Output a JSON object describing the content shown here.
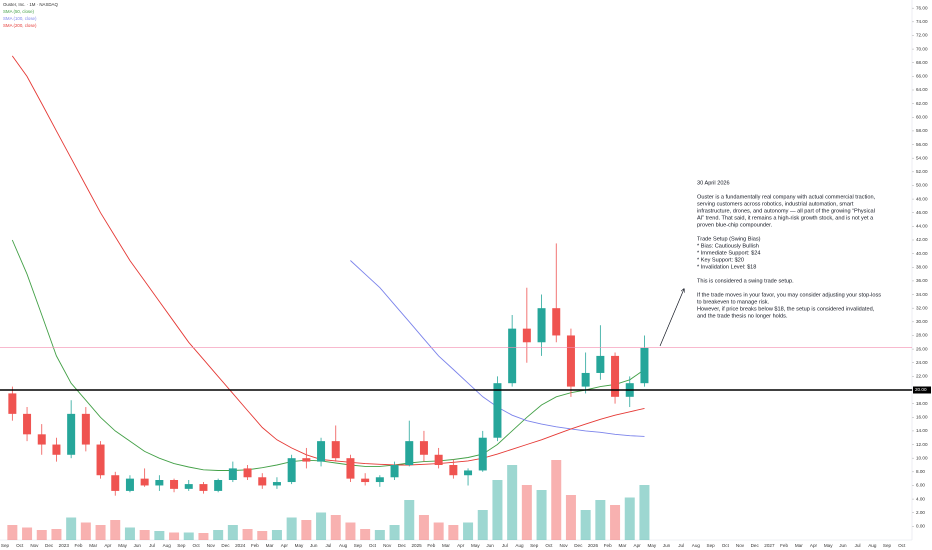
{
  "chart_data": {
    "type": "candlestick",
    "title": "Ouster, Inc. · 1M · NASDAQ",
    "categories": [
      "Sep",
      "Oct",
      "Nov",
      "Dec",
      "2023",
      "Feb",
      "Mar",
      "Apr",
      "May",
      "Jun",
      "Jul",
      "Aug",
      "Sep",
      "Oct",
      "Nov",
      "Dec",
      "2024",
      "Feb",
      "Mar",
      "Apr",
      "May",
      "Jun",
      "Jul",
      "Aug",
      "Sep",
      "Oct",
      "Nov",
      "Dec",
      "2025",
      "Feb",
      "Mar",
      "Apr",
      "May",
      "Jun",
      "Jul",
      "Aug",
      "Sep",
      "Oct",
      "Nov",
      "Dec",
      "2026",
      "Feb",
      "Mar",
      "Apr",
      "May",
      "Jun",
      "Jul",
      "Aug",
      "Sep",
      "Oct",
      "Nov",
      "Dec",
      "2027",
      "Feb",
      "Mar",
      "Apr",
      "May",
      "Jun",
      "Jul",
      "Aug",
      "Sep",
      "Oct"
    ],
    "open": [
      19.5,
      16.5,
      13.5,
      12,
      10.5,
      16.5,
      12,
      7.5,
      5.2,
      7,
      6,
      6.8,
      5.5,
      6.2,
      5.2,
      6.8,
      8.5,
      7.2,
      6,
      6.5,
      10,
      9.5,
      12.5,
      10,
      7,
      6.5,
      7.2,
      9,
      12.5,
      10.5,
      9,
      7.5,
      8.2,
      13,
      21,
      29,
      27,
      32,
      28,
      20.5,
      22.5,
      25,
      19,
      21,
      null,
      null,
      null,
      null,
      null,
      null,
      null,
      null,
      null,
      null,
      null,
      null,
      null,
      null,
      null,
      null,
      null,
      null
    ],
    "high": [
      20.5,
      17.5,
      15,
      13,
      18.5,
      17.5,
      12.5,
      8,
      7.5,
      8.5,
      7.5,
      7,
      6.8,
      6.5,
      7,
      9.5,
      9,
      7.8,
      7.2,
      10.5,
      11.5,
      13,
      14.8,
      10.5,
      7.8,
      7.5,
      9.5,
      15.5,
      14,
      11.5,
      9.8,
      8.5,
      14,
      22,
      31,
      35,
      34,
      41.5,
      29,
      25.5,
      29.5,
      25.5,
      22,
      28,
      null,
      null,
      null,
      null,
      null,
      null,
      null,
      null,
      null,
      null,
      null,
      null,
      null,
      null,
      null,
      null,
      null,
      null
    ],
    "low": [
      15.5,
      12.5,
      10.5,
      9.5,
      10,
      11,
      7,
      4.5,
      5,
      5.8,
      5.2,
      5,
      5.2,
      4.8,
      5,
      6.5,
      6.8,
      5.5,
      5.5,
      6.2,
      8.5,
      8.8,
      9.5,
      6.5,
      6,
      5.8,
      6.8,
      8.8,
      9.5,
      8.5,
      7,
      6,
      8,
      12.5,
      20.5,
      24,
      25,
      27,
      19,
      19.5,
      21.5,
      18,
      17.5,
      20.5,
      null,
      null,
      null,
      null,
      null,
      null,
      null,
      null,
      null,
      null,
      null,
      null,
      null,
      null,
      null,
      null,
      null,
      null
    ],
    "close": [
      16.5,
      13.5,
      12,
      10.5,
      16.5,
      12,
      7.5,
      5.2,
      7,
      6,
      6.8,
      5.5,
      6.2,
      5.2,
      6.8,
      8.5,
      7.2,
      6,
      6.5,
      10,
      9.5,
      12.5,
      10,
      7,
      6.5,
      7.2,
      9,
      12.5,
      10.5,
      9,
      7.5,
      8.2,
      13,
      21,
      29,
      27,
      32,
      28,
      20.5,
      22.5,
      25,
      19,
      21,
      26.2,
      null,
      null,
      null,
      null,
      null,
      null,
      null,
      null,
      null,
      null,
      null,
      null,
      null,
      null,
      null,
      null,
      null,
      null
    ],
    "volume": [
      30,
      25,
      20,
      22,
      45,
      35,
      30,
      40,
      25,
      20,
      18,
      15,
      15,
      14,
      20,
      30,
      22,
      18,
      20,
      45,
      40,
      55,
      50,
      35,
      22,
      20,
      30,
      80,
      50,
      35,
      30,
      35,
      60,
      120,
      150,
      110,
      100,
      160,
      90,
      60,
      80,
      70,
      85,
      110,
      null,
      null,
      null,
      null,
      null,
      null,
      null,
      null,
      null,
      null,
      null,
      null,
      null,
      null,
      null,
      null,
      null,
      null
    ],
    "up_color": "#26a69a",
    "down_color": "#ef5350",
    "series": [
      {
        "name": "SMA (50, close)",
        "color": "#43a047",
        "values": [
          42,
          37,
          31,
          25,
          21,
          18.5,
          16,
          14,
          12.5,
          11,
          10,
          9.2,
          8.7,
          8.3,
          8.2,
          8.2,
          8.3,
          8.6,
          9,
          9.5,
          9.7,
          9.6,
          9.3,
          9,
          8.8,
          8.8,
          9,
          9.3,
          9.5,
          9.6,
          9.8,
          10.1,
          10.6,
          12,
          14,
          16,
          17.8,
          19,
          19.6,
          20,
          20.5,
          20.8,
          21.5,
          23,
          null,
          null,
          null,
          null,
          null,
          null,
          null,
          null,
          null,
          null,
          null,
          null,
          null,
          null,
          null,
          null,
          null,
          null
        ]
      },
      {
        "name": "SMA (100, close)",
        "color": "#7b83eb",
        "values": [
          null,
          null,
          null,
          null,
          null,
          null,
          null,
          null,
          null,
          null,
          null,
          null,
          null,
          null,
          null,
          null,
          null,
          null,
          null,
          null,
          null,
          null,
          null,
          39,
          37,
          35,
          32.5,
          30,
          27.5,
          25,
          23,
          21,
          19,
          17.5,
          16.3,
          15.5,
          15,
          14.6,
          14.3,
          14,
          13.8,
          13.5,
          13.3,
          13.2,
          null,
          null,
          null,
          null,
          null,
          null,
          null,
          null,
          null,
          null,
          null,
          null,
          null,
          null,
          null,
          null,
          null,
          null
        ]
      },
      {
        "name": "SMA (200, close)",
        "color": "#e53935",
        "values": [
          69,
          66,
          62,
          58,
          54,
          50,
          46,
          42.5,
          39,
          36,
          33,
          30,
          27,
          24.5,
          22,
          19.5,
          17,
          14.5,
          12.7,
          11.5,
          10.5,
          9.8,
          9.6,
          9.4,
          9.2,
          9.1,
          9,
          9,
          9.1,
          9.2,
          9.4,
          9.6,
          10,
          10.6,
          11.3,
          12,
          12.7,
          13.5,
          14.3,
          15,
          15.7,
          16.3,
          16.8,
          17.3,
          null,
          null,
          null,
          null,
          null,
          null,
          null,
          null,
          null,
          null,
          null,
          null,
          null,
          null,
          null,
          null,
          null,
          null
        ]
      }
    ],
    "ylim": [
      -2,
      77.2
    ],
    "y2lim": [
      0,
      200
    ],
    "yticks": [
      {
        "value": 0,
        "label": "0.00"
      },
      {
        "value": 2,
        "label": "2.00"
      },
      {
        "value": 4,
        "label": "4.00"
      },
      {
        "value": 6,
        "label": "6.00"
      },
      {
        "value": 8,
        "label": "8.00"
      },
      {
        "value": 10,
        "label": "10.00"
      },
      {
        "value": 12,
        "label": "12.00"
      },
      {
        "value": 14,
        "label": "14.00"
      },
      {
        "value": 16,
        "label": "16.00"
      },
      {
        "value": 18,
        "label": "18.00"
      },
      {
        "value": 20,
        "label": "20.00"
      },
      {
        "value": 22,
        "label": "22.00"
      },
      {
        "value": 24,
        "label": "24.00"
      },
      {
        "value": 26,
        "label": "26.00"
      },
      {
        "value": 28,
        "label": "28.00"
      },
      {
        "value": 30,
        "label": "30.00"
      },
      {
        "value": 32,
        "label": "32.00"
      },
      {
        "value": 34,
        "label": "34.00"
      },
      {
        "value": 36,
        "label": "36.00"
      },
      {
        "value": 38,
        "label": "38.00"
      },
      {
        "value": 40,
        "label": "40.00"
      },
      {
        "value": 42,
        "label": "42.00"
      },
      {
        "value": 44,
        "label": "44.00"
      },
      {
        "value": 46,
        "label": "46.00"
      },
      {
        "value": 48,
        "label": "48.00"
      },
      {
        "value": 50,
        "label": "50.00"
      },
      {
        "value": 52,
        "label": "52.00"
      },
      {
        "value": 54,
        "label": "54.00"
      },
      {
        "value": 56,
        "label": "56.00"
      },
      {
        "value": 58,
        "label": "58.00"
      },
      {
        "value": 60,
        "label": "60.00"
      },
      {
        "value": 62,
        "label": "62.00"
      },
      {
        "value": 64,
        "label": "64.00"
      },
      {
        "value": 66,
        "label": "66.00"
      },
      {
        "value": 68,
        "label": "68.00"
      },
      {
        "value": 70,
        "label": "70.00"
      },
      {
        "value": 72,
        "label": "72.00"
      },
      {
        "value": 74,
        "label": "74.00"
      },
      {
        "value": 76,
        "label": "76.00"
      }
    ],
    "levels": [
      {
        "value": 20,
        "label": "20.00",
        "color": "#000000"
      }
    ],
    "last_price_color": "#f48fb1",
    "annotation": [
      [
        "30 April 2026"
      ],
      [
        "Ouster is a fundamentally real company with actual commercial traction,",
        "serving customers across robotics, industrial automation, smart",
        "infrastructure, drones, and autonomy — all part of the growing “Physical",
        "AI” trend. That said, it remains a high-risk growth stock, and is not yet a",
        "proven blue-chip compounder."
      ],
      [
        "Trade Setup (Swing Bias)",
        "* Bias: Cautiously Bullish",
        "* Immediate Support: $24",
        "* Key Support: $20",
        "* Invalidation Level: $18"
      ],
      [
        "This is considered a swing trade setup."
      ],
      [
        "If the trade moves in your favor, you may consider adjusting your stop-loss",
        "to breakeven to manage risk.",
        "However, if price breaks below $18, the setup is considered invalidated,",
        "and the trade thesis no longer holds."
      ]
    ]
  }
}
